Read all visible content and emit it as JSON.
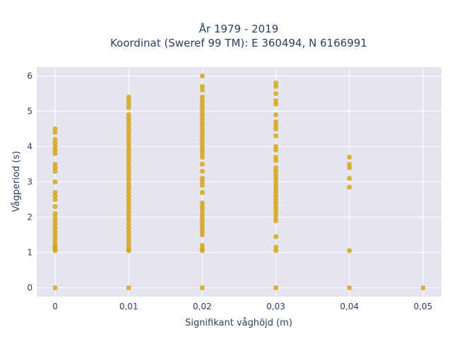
{
  "chart_data": {
    "type": "scatter",
    "title_line1": "År 1979 - 2019",
    "title_line2": "Koordinat (Sweref 99 TM): E 360494, N 6166991",
    "xlabel": "Signifikant våghöjd (m)",
    "ylabel": "Vågperiod (s)",
    "xlim": [
      -0.0025,
      0.0525
    ],
    "ylim": [
      -0.25,
      6.25
    ],
    "x_ticks": [
      {
        "value": 0,
        "label": "0"
      },
      {
        "value": 0.01,
        "label": "0,01"
      },
      {
        "value": 0.02,
        "label": "0,02"
      },
      {
        "value": 0.03,
        "label": "0,03"
      },
      {
        "value": 0.04,
        "label": "0,04"
      },
      {
        "value": 0.05,
        "label": "0,05"
      }
    ],
    "y_ticks": [
      {
        "value": 0,
        "label": "0"
      },
      {
        "value": 1,
        "label": "1"
      },
      {
        "value": 2,
        "label": "2"
      },
      {
        "value": 3,
        "label": "3"
      },
      {
        "value": 4,
        "label": "4"
      },
      {
        "value": 5,
        "label": "5"
      },
      {
        "value": 6,
        "label": "6"
      }
    ],
    "grid": true,
    "colors": {
      "marker": "#d4a418",
      "plot_bg": "#e5e5f0",
      "grid": "#ffffff",
      "text": "#2a3f5f"
    },
    "series": [
      {
        "points": [
          {
            "x": 0,
            "y": 0
          },
          {
            "x": 0,
            "y": 1.05
          },
          {
            "x": 0,
            "y": 1.1
          },
          {
            "x": 0,
            "y": 1.15
          },
          {
            "x": 0,
            "y": 1.2
          },
          {
            "x": 0,
            "y": 1.3
          },
          {
            "x": 0,
            "y": 1.4
          },
          {
            "x": 0,
            "y": 1.5
          },
          {
            "x": 0,
            "y": 1.6
          },
          {
            "x": 0,
            "y": 1.7
          },
          {
            "x": 0,
            "y": 1.8
          },
          {
            "x": 0,
            "y": 1.9
          },
          {
            "x": 0,
            "y": 2.0
          },
          {
            "x": 0,
            "y": 2.1
          },
          {
            "x": 0,
            "y": 2.3
          },
          {
            "x": 0,
            "y": 2.5
          },
          {
            "x": 0,
            "y": 2.6
          },
          {
            "x": 0,
            "y": 2.7
          },
          {
            "x": 0,
            "y": 3.0
          },
          {
            "x": 0,
            "y": 3.3
          },
          {
            "x": 0,
            "y": 3.4
          },
          {
            "x": 0,
            "y": 3.5
          },
          {
            "x": 0,
            "y": 3.8
          },
          {
            "x": 0,
            "y": 3.9
          },
          {
            "x": 0,
            "y": 4.0
          },
          {
            "x": 0,
            "y": 4.1
          },
          {
            "x": 0,
            "y": 4.2
          },
          {
            "x": 0,
            "y": 4.4
          },
          {
            "x": 0,
            "y": 4.5
          },
          {
            "x": 0.01,
            "y": 0
          },
          {
            "x": 0.01,
            "y": 1.05
          },
          {
            "x": 0.01,
            "y": 1.1
          },
          {
            "x": 0.01,
            "y": 1.2
          },
          {
            "x": 0.01,
            "y": 1.3
          },
          {
            "x": 0.01,
            "y": 1.4
          },
          {
            "x": 0.01,
            "y": 1.5
          },
          {
            "x": 0.01,
            "y": 1.6
          },
          {
            "x": 0.01,
            "y": 1.7
          },
          {
            "x": 0.01,
            "y": 1.8
          },
          {
            "x": 0.01,
            "y": 1.9
          },
          {
            "x": 0.01,
            "y": 2.0
          },
          {
            "x": 0.01,
            "y": 2.1
          },
          {
            "x": 0.01,
            "y": 2.2
          },
          {
            "x": 0.01,
            "y": 2.3
          },
          {
            "x": 0.01,
            "y": 2.4
          },
          {
            "x": 0.01,
            "y": 2.5
          },
          {
            "x": 0.01,
            "y": 2.6
          },
          {
            "x": 0.01,
            "y": 2.7
          },
          {
            "x": 0.01,
            "y": 2.8
          },
          {
            "x": 0.01,
            "y": 2.9
          },
          {
            "x": 0.01,
            "y": 3.0
          },
          {
            "x": 0.01,
            "y": 3.1
          },
          {
            "x": 0.01,
            "y": 3.2
          },
          {
            "x": 0.01,
            "y": 3.3
          },
          {
            "x": 0.01,
            "y": 3.4
          },
          {
            "x": 0.01,
            "y": 3.5
          },
          {
            "x": 0.01,
            "y": 3.6
          },
          {
            "x": 0.01,
            "y": 3.7
          },
          {
            "x": 0.01,
            "y": 3.8
          },
          {
            "x": 0.01,
            "y": 3.9
          },
          {
            "x": 0.01,
            "y": 4.0
          },
          {
            "x": 0.01,
            "y": 4.1
          },
          {
            "x": 0.01,
            "y": 4.2
          },
          {
            "x": 0.01,
            "y": 4.3
          },
          {
            "x": 0.01,
            "y": 4.4
          },
          {
            "x": 0.01,
            "y": 4.5
          },
          {
            "x": 0.01,
            "y": 4.6
          },
          {
            "x": 0.01,
            "y": 4.7
          },
          {
            "x": 0.01,
            "y": 4.8
          },
          {
            "x": 0.01,
            "y": 4.9
          },
          {
            "x": 0.01,
            "y": 5.1
          },
          {
            "x": 0.01,
            "y": 5.2
          },
          {
            "x": 0.01,
            "y": 5.3
          },
          {
            "x": 0.01,
            "y": 5.4
          },
          {
            "x": 0.02,
            "y": 0
          },
          {
            "x": 0.02,
            "y": 1.05
          },
          {
            "x": 0.02,
            "y": 1.1
          },
          {
            "x": 0.02,
            "y": 1.2
          },
          {
            "x": 0.02,
            "y": 1.5
          },
          {
            "x": 0.02,
            "y": 1.6
          },
          {
            "x": 0.02,
            "y": 1.7
          },
          {
            "x": 0.02,
            "y": 1.8
          },
          {
            "x": 0.02,
            "y": 1.9
          },
          {
            "x": 0.02,
            "y": 2.0
          },
          {
            "x": 0.02,
            "y": 2.1
          },
          {
            "x": 0.02,
            "y": 2.2
          },
          {
            "x": 0.02,
            "y": 2.3
          },
          {
            "x": 0.02,
            "y": 2.4
          },
          {
            "x": 0.02,
            "y": 2.7
          },
          {
            "x": 0.02,
            "y": 2.9
          },
          {
            "x": 0.02,
            "y": 3.0
          },
          {
            "x": 0.02,
            "y": 3.1
          },
          {
            "x": 0.02,
            "y": 3.3
          },
          {
            "x": 0.02,
            "y": 3.5
          },
          {
            "x": 0.02,
            "y": 3.7
          },
          {
            "x": 0.02,
            "y": 3.8
          },
          {
            "x": 0.02,
            "y": 3.9
          },
          {
            "x": 0.02,
            "y": 4.0
          },
          {
            "x": 0.02,
            "y": 4.1
          },
          {
            "x": 0.02,
            "y": 4.2
          },
          {
            "x": 0.02,
            "y": 4.3
          },
          {
            "x": 0.02,
            "y": 4.4
          },
          {
            "x": 0.02,
            "y": 4.5
          },
          {
            "x": 0.02,
            "y": 4.6
          },
          {
            "x": 0.02,
            "y": 4.7
          },
          {
            "x": 0.02,
            "y": 4.8
          },
          {
            "x": 0.02,
            "y": 4.9
          },
          {
            "x": 0.02,
            "y": 5.0
          },
          {
            "x": 0.02,
            "y": 5.1
          },
          {
            "x": 0.02,
            "y": 5.2
          },
          {
            "x": 0.02,
            "y": 5.3
          },
          {
            "x": 0.02,
            "y": 5.4
          },
          {
            "x": 0.02,
            "y": 5.6
          },
          {
            "x": 0.02,
            "y": 5.7
          },
          {
            "x": 0.02,
            "y": 6.0
          },
          {
            "x": 0.03,
            "y": 0
          },
          {
            "x": 0.03,
            "y": 1.05
          },
          {
            "x": 0.03,
            "y": 1.15
          },
          {
            "x": 0.03,
            "y": 1.45
          },
          {
            "x": 0.03,
            "y": 1.9
          },
          {
            "x": 0.03,
            "y": 2.0
          },
          {
            "x": 0.03,
            "y": 2.1
          },
          {
            "x": 0.03,
            "y": 2.2
          },
          {
            "x": 0.03,
            "y": 2.3
          },
          {
            "x": 0.03,
            "y": 2.4
          },
          {
            "x": 0.03,
            "y": 2.5
          },
          {
            "x": 0.03,
            "y": 2.6
          },
          {
            "x": 0.03,
            "y": 2.7
          },
          {
            "x": 0.03,
            "y": 2.8
          },
          {
            "x": 0.03,
            "y": 2.9
          },
          {
            "x": 0.03,
            "y": 3.0
          },
          {
            "x": 0.03,
            "y": 3.1
          },
          {
            "x": 0.03,
            "y": 3.2
          },
          {
            "x": 0.03,
            "y": 3.3
          },
          {
            "x": 0.03,
            "y": 3.4
          },
          {
            "x": 0.03,
            "y": 3.6
          },
          {
            "x": 0.03,
            "y": 3.7
          },
          {
            "x": 0.03,
            "y": 3.9
          },
          {
            "x": 0.03,
            "y": 4.0
          },
          {
            "x": 0.03,
            "y": 4.3
          },
          {
            "x": 0.03,
            "y": 4.5
          },
          {
            "x": 0.03,
            "y": 4.6
          },
          {
            "x": 0.03,
            "y": 4.7
          },
          {
            "x": 0.03,
            "y": 4.9
          },
          {
            "x": 0.03,
            "y": 5.2
          },
          {
            "x": 0.03,
            "y": 5.3
          },
          {
            "x": 0.03,
            "y": 5.5
          },
          {
            "x": 0.03,
            "y": 5.7
          },
          {
            "x": 0.03,
            "y": 5.8
          },
          {
            "x": 0.04,
            "y": 0
          },
          {
            "x": 0.04,
            "y": 1.05
          },
          {
            "x": 0.04,
            "y": 2.85
          },
          {
            "x": 0.04,
            "y": 3.1
          },
          {
            "x": 0.04,
            "y": 3.4
          },
          {
            "x": 0.04,
            "y": 3.5
          },
          {
            "x": 0.04,
            "y": 3.7
          },
          {
            "x": 0.05,
            "y": 0
          }
        ]
      }
    ]
  }
}
